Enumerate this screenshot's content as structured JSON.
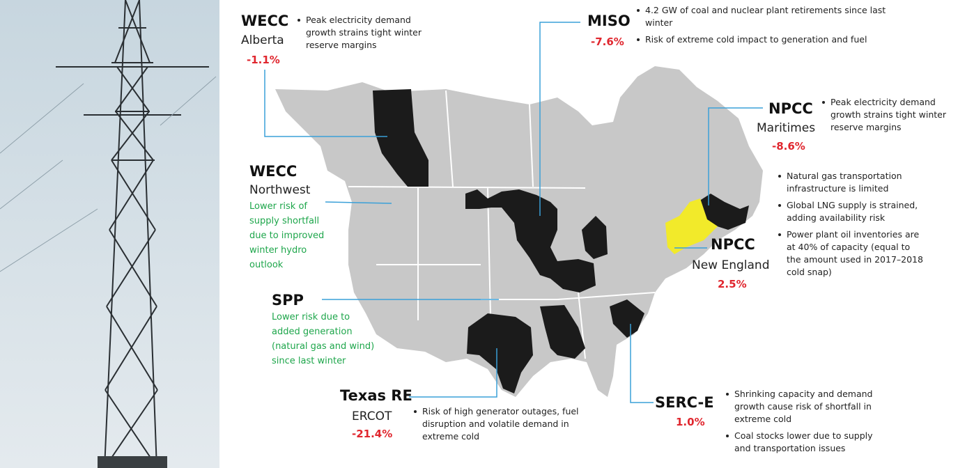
{
  "regions": [
    {
      "name": "WECC",
      "subregion": "Alberta",
      "change": "-1.1%",
      "notes": [
        "Peak electricity demand growth strains tight winter reserve margins"
      ]
    },
    {
      "name": "MISO",
      "change": "-7.6%",
      "notes": [
        "4.2 GW of coal and nuclear plant retirements since last winter",
        "Risk of extreme cold impact to generation and fuel"
      ]
    },
    {
      "name": "NPCC",
      "subregion": "Maritimes",
      "change": "-8.6%",
      "notes": [
        "Peak electricity demand growth strains tight winter reserve margins"
      ]
    },
    {
      "name": "WECC",
      "subregion": "Northwest",
      "outlook": "Lower risk of supply shortfall due to improved winter hydro outlook"
    },
    {
      "name": "SPP",
      "outlook": "Lower risk due to added generation (natural gas and wind) since last winter"
    },
    {
      "name": "NPCC",
      "subregion": "New England",
      "change": "2.5%",
      "notes": [
        "Natural gas transportation infrastructure is limited",
        "Global LNG supply is strained, adding availability risk",
        "Power plant oil inventories are at 40% of capacity (equal to the amount used in 2017–2018 cold snap)"
      ]
    },
    {
      "name": "Texas RE",
      "subregion": "ERCOT",
      "change": "-21.4%",
      "notes": [
        "Risk of high generator outages, fuel disruption and volatile demand in extreme cold"
      ]
    },
    {
      "name": "SERC-E",
      "change": "1.0%",
      "notes": [
        "Shrinking capacity and demand growth cause risk of shortfall in extreme cold",
        "Coal stocks lower due to supply and transportation issues"
      ]
    }
  ]
}
